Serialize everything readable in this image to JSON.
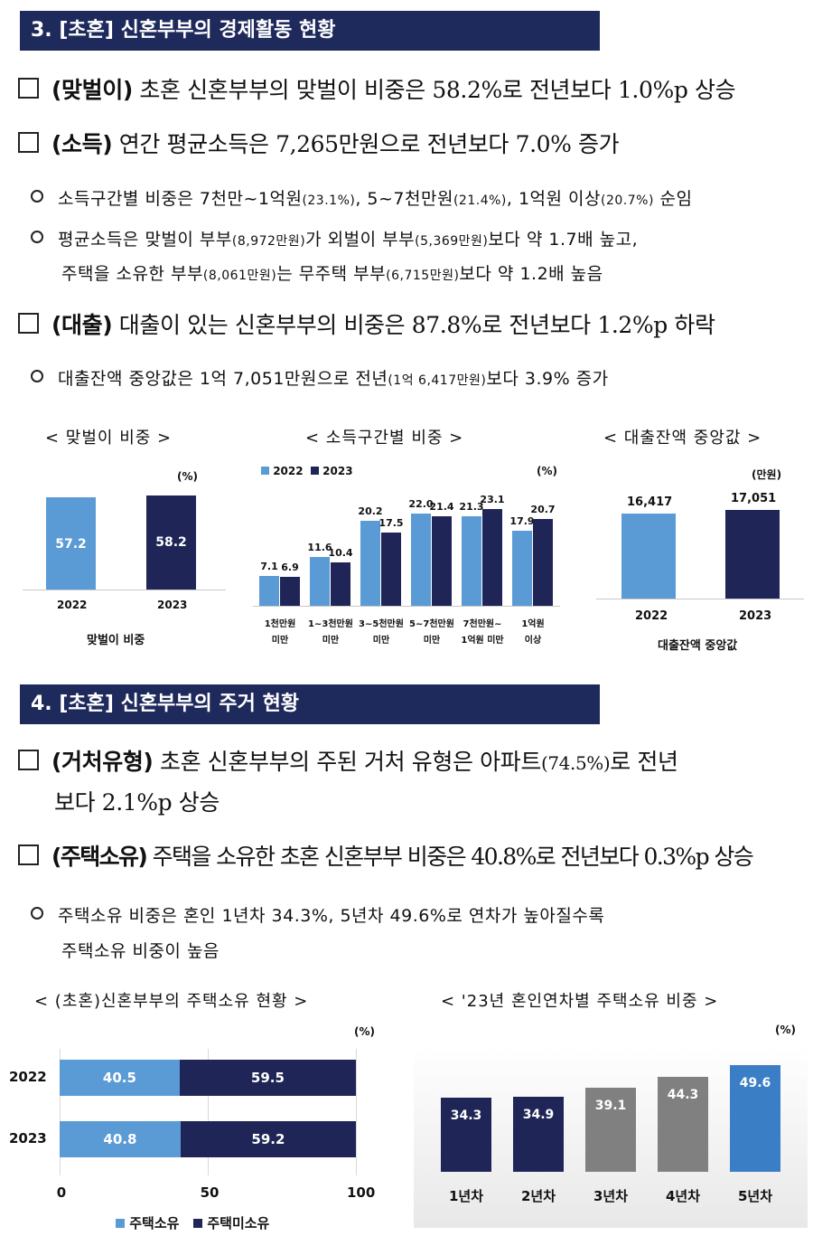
{
  "section3": {
    "title": "3. [초혼] 신혼부부의 경제활동 현황",
    "b1_key": "(맞벌이)",
    "b1_text": " 초혼 신혼부부의 맞벌이 비중은 58.2%로 전년보다 1.0%p 상승",
    "b2_key": "(소득)",
    "b2_text": " 연간 평균소득은 7,265만원으로 전년보다 7.0% 증가",
    "s1": {
      "t1": "소득구간별 비중은 7천만~1억원",
      "t2": "(23.1%)",
      "t3": ", 5~7천만원",
      "t4": "(21.4%)",
      "t5": ", 1억원 이상",
      "t6": "(20.7%)",
      "t7": " 순임"
    },
    "s2": {
      "t1": "평균소득은 맞벌이 부부",
      "t2": "(8,972만원)",
      "t3": "가 외벌이 부부",
      "t4": "(5,369만원)",
      "t5": "보다 약 1.7배 높고,"
    },
    "s3": {
      "t1": "주택을 소유한 부부",
      "t2": "(8,061만원)",
      "t3": "는 무주택 부부",
      "t4": "(6,715만원)",
      "t5": "보다 약 1.2배 높음"
    },
    "b3_key": "(대출)",
    "b3_text": " 대출이 있는 신혼부부의 비중은 87.8%로 전년보다 1.2%p 하락",
    "s4": {
      "t1": "대출잔액 중앙값은 1억 7,051만원으로 전년",
      "t2": "(1억 6,417만원)",
      "t3": "보다 3.9% 증가"
    }
  },
  "section4": {
    "title": "4. [초혼] 신혼부부의 주거 현황",
    "b1_key": "(거처유형)",
    "b1_text": " 초혼 신혼부부의 주된 거처 유형은 아파트",
    "b1_small": "(74.5%)",
    "b1_text2": "로 전년",
    "b1_line2": "보다 2.1%p 상승",
    "b2_key": "(주택소유)",
    "b2_text": " 주택을 소유한 초혼 신혼부부 비중은 40.8%로 전년보다 0.3%p 상승",
    "s1_line1": "주택소유 비중은 혼인 1년차 34.3%, 5년차 49.6%로 연차가 높아질수록",
    "s1_line2": "주택소유 비중이 높음"
  },
  "chart_data": [
    {
      "type": "bar",
      "title": "< 맞벌이 비중 >",
      "unit": "(%)",
      "categories": [
        "2022",
        "2023"
      ],
      "values": [
        57.2,
        58.2
      ],
      "xlabel": "맞벌이 비중",
      "colors": [
        "#5b9bd5",
        "#1f2657"
      ]
    },
    {
      "type": "bar",
      "title": "< 소득구간별 비중 >",
      "unit": "(%)",
      "categories": [
        "1천만원 미만",
        "1~3천만원 미만",
        "3~5천만원 미만",
        "5~7천만원 미만",
        "7천만원~ 1억원 미만",
        "1억원 이상"
      ],
      "category_lines": [
        [
          "1천만원",
          "미만"
        ],
        [
          "1~3천만원",
          "미만"
        ],
        [
          "3~5천만원",
          "미만"
        ],
        [
          "5~7천만원",
          "미만"
        ],
        [
          "7천만원~",
          "1억원 미만"
        ],
        [
          "1억원",
          "이상"
        ]
      ],
      "series": [
        {
          "name": "2022",
          "values": [
            7.1,
            11.6,
            20.2,
            22.0,
            21.3,
            17.9
          ],
          "color": "#5b9bd5"
        },
        {
          "name": "2023",
          "values": [
            6.9,
            10.4,
            17.5,
            21.4,
            23.1,
            20.7
          ],
          "color": "#1f2657"
        }
      ],
      "legend": "top-left"
    },
    {
      "type": "bar",
      "title": "< 대출잔액 중앙값 >",
      "unit": "(만원)",
      "categories": [
        "2022",
        "2023"
      ],
      "values": [
        16417,
        17051
      ],
      "value_labels": [
        "16,417",
        "17,051"
      ],
      "xlabel": "대출잔액 중앙값",
      "colors": [
        "#5b9bd5",
        "#1f2657"
      ]
    },
    {
      "type": "bar",
      "orientation": "horizontal-stacked",
      "title": "< (초혼)신혼부부의 주택소유 현황 >",
      "unit": "(%)",
      "categories": [
        "2022",
        "2023"
      ],
      "series": [
        {
          "name": "주택소유",
          "values": [
            40.5,
            40.8
          ],
          "color": "#5b9bd5"
        },
        {
          "name": "주택미소유",
          "values": [
            59.5,
            59.2
          ],
          "color": "#1f2657"
        }
      ],
      "xticks": [
        "0",
        "50",
        "100"
      ],
      "xlim": [
        0,
        100
      ],
      "legend": "bottom"
    },
    {
      "type": "bar",
      "title": "< '23년 혼인연차별 주택소유 비중 >",
      "unit": "(%)",
      "categories": [
        "1년차",
        "2년차",
        "3년차",
        "4년차",
        "5년차"
      ],
      "values": [
        34.3,
        34.9,
        39.1,
        44.3,
        49.6
      ],
      "colors": [
        "#1f2657",
        "#1f2657",
        "#808080",
        "#808080",
        "#3a7fc6"
      ]
    }
  ]
}
